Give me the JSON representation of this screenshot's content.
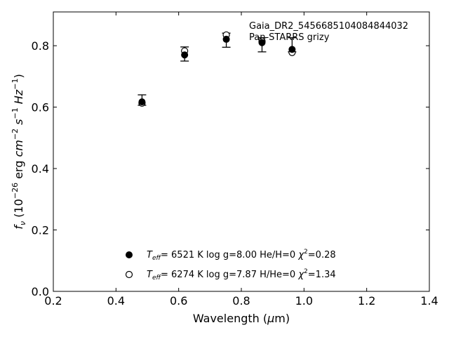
{
  "chart_data": {
    "type": "scatter",
    "annotation": {
      "line1": "Gaia_DR2_5456685104084844032",
      "line2": "Pan-STARRS grizy"
    },
    "xlabel": "Wavelength (μm)",
    "ylabel": "f_ν (10^-26 erg cm^-2 s^-1 Hz^-1)",
    "xlim": [
      0.2,
      1.4
    ],
    "ylim": [
      0.0,
      0.91
    ],
    "xticks": [
      "0.2",
      "0.4",
      "0.6",
      "0.8",
      "1.0",
      "1.2",
      "1.4"
    ],
    "yticks": [
      "0.0",
      "0.2",
      "0.4",
      "0.6",
      "0.8"
    ],
    "observed": {
      "x": [
        0.483,
        0.619,
        0.752,
        0.866,
        0.962
      ],
      "y": [
        0.623,
        0.773,
        0.818,
        0.803,
        0.803
      ],
      "err": [
        0.017,
        0.023,
        0.023,
        0.023,
        0.023
      ]
    },
    "series": [
      {
        "name": "Teff= 6521 K log g=8.00 He/H=0 χ2=0.28",
        "marker": "filled",
        "x": [
          0.483,
          0.619,
          0.752,
          0.866,
          0.962
        ],
        "y": [
          0.617,
          0.77,
          0.821,
          0.81,
          0.788
        ]
      },
      {
        "name": "Teff= 6274 K log g=7.87 H/He=0 χ2=1.34",
        "marker": "open",
        "x": [
          0.483,
          0.619,
          0.752,
          0.866,
          0.962
        ],
        "y": [
          0.613,
          0.783,
          0.835,
          0.815,
          0.778
        ]
      }
    ],
    "legend": [
      {
        "teff": "6521 K",
        "logg": "log g=8.00",
        "comp": "He/H=0",
        "chi": "=0.28"
      },
      {
        "teff": "6274 K",
        "logg": "log g=7.87",
        "comp": "H/He=0",
        "chi": "=1.34"
      }
    ],
    "legend_position": "lower-center",
    "grid": false
  }
}
